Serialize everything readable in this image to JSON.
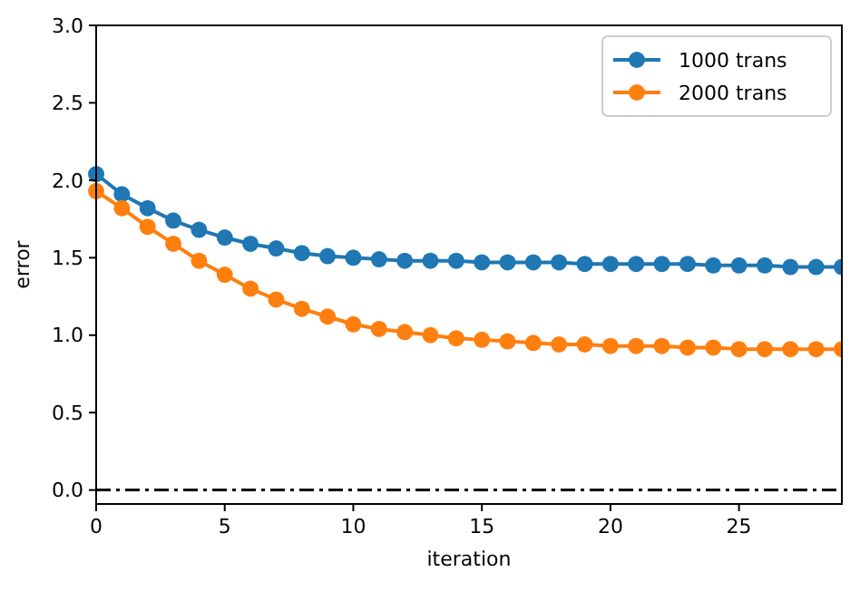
{
  "chart_data": {
    "type": "line",
    "xlabel": "iteration",
    "ylabel": "error",
    "x": [
      0,
      1,
      2,
      3,
      4,
      5,
      6,
      7,
      8,
      9,
      10,
      11,
      12,
      13,
      14,
      15,
      16,
      17,
      18,
      19,
      20,
      21,
      22,
      23,
      24,
      25,
      26,
      27,
      28,
      29
    ],
    "series": [
      {
        "name": "1000 trans",
        "color": "#1f77b4",
        "values": [
          2.04,
          1.91,
          1.82,
          1.74,
          1.68,
          1.63,
          1.59,
          1.56,
          1.53,
          1.51,
          1.5,
          1.49,
          1.48,
          1.48,
          1.48,
          1.47,
          1.47,
          1.47,
          1.47,
          1.46,
          1.46,
          1.46,
          1.46,
          1.46,
          1.45,
          1.45,
          1.45,
          1.44,
          1.44,
          1.44
        ]
      },
      {
        "name": "2000 trans",
        "color": "#ff7f0e",
        "values": [
          1.93,
          1.82,
          1.7,
          1.59,
          1.48,
          1.39,
          1.3,
          1.23,
          1.17,
          1.12,
          1.07,
          1.04,
          1.02,
          1.0,
          0.98,
          0.97,
          0.96,
          0.95,
          0.94,
          0.94,
          0.93,
          0.93,
          0.93,
          0.92,
          0.92,
          0.91,
          0.91,
          0.91,
          0.91,
          0.91
        ]
      }
    ],
    "xlim": [
      0,
      29
    ],
    "xticks": [
      0,
      5,
      10,
      15,
      20,
      25
    ],
    "ylim": [
      -0.09,
      3.0
    ],
    "yticks": [
      {
        "value": 0,
        "label": "0.0"
      },
      {
        "value": 0.5,
        "label": "0.5"
      },
      {
        "value": 1,
        "label": "1.0"
      },
      {
        "value": 1.5,
        "label": "1.5"
      },
      {
        "value": 2,
        "label": "2.0"
      },
      {
        "value": 2.5,
        "label": "2.5"
      },
      {
        "value": 3,
        "label": "3.0"
      }
    ],
    "ref_lines": [
      {
        "axis": "y",
        "value": 0,
        "color": "#000000",
        "line_style": "dashdot"
      }
    ],
    "marker": "circle",
    "line_style": "solid",
    "legend": "top right",
    "grid": false
  }
}
